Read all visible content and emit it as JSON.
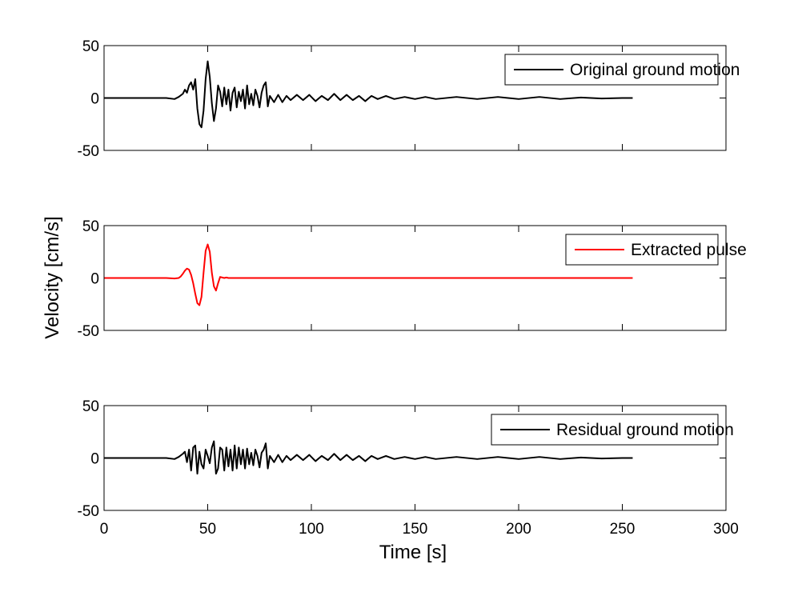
{
  "figure": {
    "ylabel": "Velocity [cm/s]",
    "xlabel": "Time [s]"
  },
  "chart_data": [
    {
      "type": "line",
      "title": "",
      "xlabel": "",
      "ylabel": "",
      "xlim": [
        0,
        300
      ],
      "ylim": [
        -50,
        50
      ],
      "xticks": [
        0,
        50,
        100,
        150,
        200,
        250,
        300
      ],
      "show_x_tick_labels": false,
      "yticks": [
        -50,
        0,
        50
      ],
      "grid": false,
      "legend_position": "top-right",
      "series": [
        {
          "name": "Original ground motion",
          "color": "#000000",
          "x": [
            0,
            20,
            30,
            34,
            36,
            38,
            39,
            40,
            41,
            42,
            43,
            44,
            45,
            46,
            47,
            48,
            49,
            50,
            51,
            52,
            53,
            54,
            55,
            56,
            57,
            58,
            59,
            60,
            61,
            62,
            63,
            64,
            65,
            66,
            67,
            68,
            69,
            70,
            71,
            72,
            73,
            74,
            75,
            76,
            77,
            78,
            79,
            80,
            82,
            84,
            86,
            88,
            90,
            93,
            96,
            99,
            102,
            105,
            108,
            111,
            114,
            117,
            120,
            123,
            126,
            129,
            132,
            136,
            140,
            145,
            150,
            155,
            160,
            170,
            180,
            190,
            200,
            210,
            220,
            230,
            240,
            250,
            255
          ],
          "y": [
            0,
            0,
            0,
            -1,
            1,
            4,
            8,
            5,
            12,
            15,
            8,
            18,
            -10,
            -25,
            -28,
            -12,
            18,
            35,
            20,
            -5,
            -22,
            -10,
            12,
            6,
            -8,
            10,
            -6,
            8,
            -12,
            5,
            10,
            -9,
            6,
            -3,
            8,
            -10,
            12,
            -6,
            4,
            -7,
            8,
            2,
            -9,
            5,
            12,
            15,
            -8,
            2,
            -4,
            3,
            -4,
            2,
            -2,
            3,
            -2,
            3,
            -3,
            2,
            -2,
            4,
            -2,
            3,
            -2,
            2,
            -3,
            2,
            -1,
            2,
            -1,
            1,
            -1,
            1,
            -1,
            1,
            -1,
            1,
            -1,
            1,
            -1,
            0.5,
            -0.5,
            0,
            0
          ]
        }
      ]
    },
    {
      "type": "line",
      "title": "",
      "xlabel": "",
      "ylabel": "",
      "xlim": [
        0,
        300
      ],
      "ylim": [
        -50,
        50
      ],
      "xticks": [
        0,
        50,
        100,
        150,
        200,
        250,
        300
      ],
      "show_x_tick_labels": false,
      "yticks": [
        -50,
        0,
        50
      ],
      "grid": false,
      "legend_position": "top-right",
      "series": [
        {
          "name": "Extracted pulse",
          "color": "#ff0000",
          "x": [
            0,
            30,
            34,
            36,
            37,
            38,
            39,
            40,
            41,
            42,
            43,
            44,
            45,
            46,
            47,
            48,
            49,
            50,
            51,
            52,
            53,
            54,
            55,
            56,
            57,
            58,
            59,
            60,
            62,
            65,
            70,
            255
          ],
          "y": [
            0,
            0,
            -0.5,
            0,
            1.5,
            4,
            7,
            9,
            8,
            3,
            -5,
            -15,
            -24,
            -26,
            -18,
            5,
            26,
            32,
            25,
            5,
            -8,
            -12,
            -5,
            1,
            0.5,
            0,
            0.5,
            0,
            0,
            0,
            0,
            0
          ]
        }
      ]
    },
    {
      "type": "line",
      "title": "",
      "xlabel": "Time [s]",
      "ylabel": "",
      "xlim": [
        0,
        300
      ],
      "ylim": [
        -50,
        50
      ],
      "xticks": [
        0,
        50,
        100,
        150,
        200,
        250,
        300
      ],
      "show_x_tick_labels": true,
      "yticks": [
        -50,
        0,
        50
      ],
      "grid": false,
      "legend_position": "top-right",
      "series": [
        {
          "name": "Residual ground motion",
          "color": "#000000",
          "x": [
            0,
            20,
            30,
            34,
            36,
            38,
            39,
            40,
            41,
            42,
            43,
            44,
            45,
            46,
            47,
            48,
            49,
            50,
            51,
            52,
            53,
            54,
            55,
            56,
            57,
            58,
            59,
            60,
            61,
            62,
            63,
            64,
            65,
            66,
            67,
            68,
            69,
            70,
            71,
            72,
            73,
            74,
            75,
            76,
            77,
            78,
            79,
            80,
            82,
            84,
            86,
            88,
            90,
            93,
            96,
            99,
            102,
            105,
            108,
            111,
            114,
            117,
            120,
            123,
            126,
            129,
            132,
            136,
            140,
            145,
            150,
            155,
            160,
            170,
            180,
            190,
            200,
            210,
            220,
            230,
            240,
            250,
            255
          ],
          "y": [
            0,
            0,
            0,
            -1,
            1,
            4,
            6,
            -4,
            8,
            -12,
            10,
            12,
            -15,
            6,
            -6,
            -10,
            8,
            2,
            -5,
            10,
            16,
            -15,
            -10,
            10,
            8,
            -12,
            10,
            -8,
            8,
            -12,
            12,
            -10,
            10,
            -6,
            8,
            -10,
            9,
            -6,
            5,
            -7,
            8,
            2,
            -9,
            5,
            8,
            14,
            -10,
            2,
            -4,
            3,
            -4,
            2,
            -2,
            3,
            -2,
            3,
            -3,
            2,
            -2,
            4,
            -2,
            3,
            -2,
            2,
            -3,
            2,
            -1,
            2,
            -1,
            1,
            -1,
            1,
            -1,
            1,
            -1,
            1,
            -1,
            1,
            -1,
            0.5,
            -0.5,
            0,
            0
          ]
        }
      ]
    }
  ]
}
